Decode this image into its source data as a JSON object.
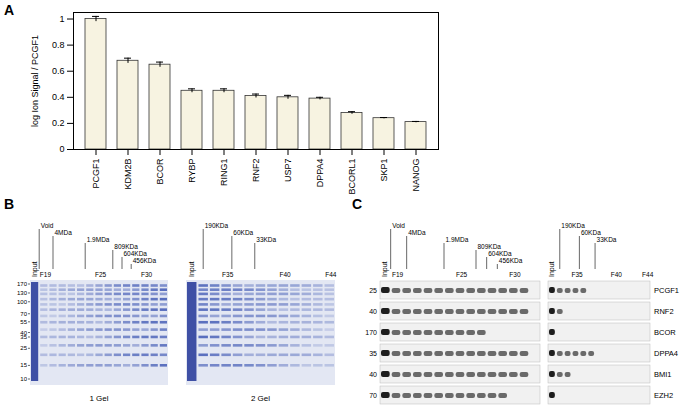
{
  "chart_data": {
    "type": "bar",
    "panel": "A",
    "y_label": "log Ion Signal / PCGF1",
    "categories": [
      "PCGF1",
      "KDM2B",
      "BCOR",
      "RYBP",
      "RING1",
      "RNF2",
      "USP7",
      "DPPA4",
      "BCORL1",
      "SKP1",
      "NANOG"
    ],
    "values": [
      1.0,
      0.68,
      0.65,
      0.45,
      0.45,
      0.41,
      0.4,
      0.39,
      0.28,
      0.24,
      0.21
    ],
    "errors": [
      0.02,
      0.02,
      0.02,
      0.015,
      0.015,
      0.015,
      0.015,
      0.01,
      0.01,
      0.005,
      0.005
    ],
    "color": "#f7f3e1",
    "ylim": [
      0,
      1.05
    ],
    "yticks": [
      0,
      0.2,
      0.4,
      0.6,
      0.8,
      1
    ],
    "grid": false
  },
  "gel_panel": {
    "panel": "B",
    "gels": [
      {
        "caption": "1 Gel",
        "input_label": "Input",
        "fractions": [
          19,
          32
        ],
        "fraction_labels": [
          {
            "label": "F19",
            "fraction": 19
          },
          {
            "label": "F25",
            "fraction": 25
          },
          {
            "label": "F30",
            "fraction": 30
          }
        ],
        "size_markers": [
          {
            "label": "Void",
            "fraction": 18.5
          },
          {
            "label": "4MDa",
            "fraction": 20
          },
          {
            "label": "1.9MDa",
            "fraction": 23.5
          },
          {
            "label": "809KDa",
            "fraction": 26.5
          },
          {
            "label": "604KDa",
            "fraction": 27.5
          },
          {
            "label": "456KDa",
            "fraction": 28.5
          }
        ],
        "mw_markers": [
          170,
          130,
          100,
          70,
          55,
          40,
          35,
          25,
          15,
          10
        ]
      },
      {
        "caption": "2 Gel",
        "input_label": "Input",
        "fractions": [
          33,
          44
        ],
        "fraction_labels": [
          {
            "label": "F35",
            "fraction": 35
          },
          {
            "label": "F40",
            "fraction": 40
          },
          {
            "label": "F44",
            "fraction": 44
          }
        ],
        "size_markers": [
          {
            "label": "190KDa",
            "fraction": 33
          },
          {
            "label": "60KDa",
            "fraction": 35.5
          },
          {
            "label": "33KDa",
            "fraction": 37.5
          }
        ],
        "mw_markers": []
      }
    ]
  },
  "blot_panel": {
    "panel": "C",
    "blots": [
      {
        "input_label": "Input",
        "fractions": [
          19,
          32
        ],
        "fraction_labels": [
          {
            "label": "F19",
            "fraction": 19
          },
          {
            "label": "F25",
            "fraction": 25
          },
          {
            "label": "F30",
            "fraction": 30
          }
        ],
        "size_markers": [
          {
            "label": "Void",
            "fraction": 18.5
          },
          {
            "label": "4MDa",
            "fraction": 20
          },
          {
            "label": "1.9MDa",
            "fraction": 23.5
          },
          {
            "label": "809KDa",
            "fraction": 26.5
          },
          {
            "label": "604KDa",
            "fraction": 27.5
          },
          {
            "label": "456KDa",
            "fraction": 28.5
          }
        ]
      },
      {
        "input_label": "Input",
        "fractions": [
          33,
          44
        ],
        "fraction_labels": [
          {
            "label": "F35",
            "fraction": 35
          },
          {
            "label": "F40",
            "fraction": 40
          },
          {
            "label": "F44",
            "fraction": 44
          }
        ],
        "size_markers": [
          {
            "label": "190KDa",
            "fraction": 33
          },
          {
            "label": "60KDa",
            "fraction": 35.5
          },
          {
            "label": "33KDa",
            "fraction": 37.5
          }
        ]
      }
    ],
    "rows": [
      {
        "protein": "PCGF1",
        "mw": 25,
        "bands": [
          [
            19,
            31
          ],
          [
            33,
            36
          ]
        ]
      },
      {
        "protein": "RNF2",
        "mw": 40,
        "bands": [
          [
            19,
            31
          ],
          [
            33,
            33
          ]
        ]
      },
      {
        "protein": "BCOR",
        "mw": 170,
        "bands": [
          [
            19,
            27
          ],
          null
        ]
      },
      {
        "protein": "DPPA4",
        "mw": 35,
        "bands": [
          [
            19,
            31
          ],
          [
            33,
            37
          ]
        ]
      },
      {
        "protein": "BMI1",
        "mw": 40,
        "bands": [
          [
            19,
            31
          ],
          [
            33,
            34
          ]
        ]
      },
      {
        "protein": "EZH2",
        "mw": 70,
        "bands": [
          [
            19,
            29
          ],
          null
        ]
      }
    ]
  }
}
